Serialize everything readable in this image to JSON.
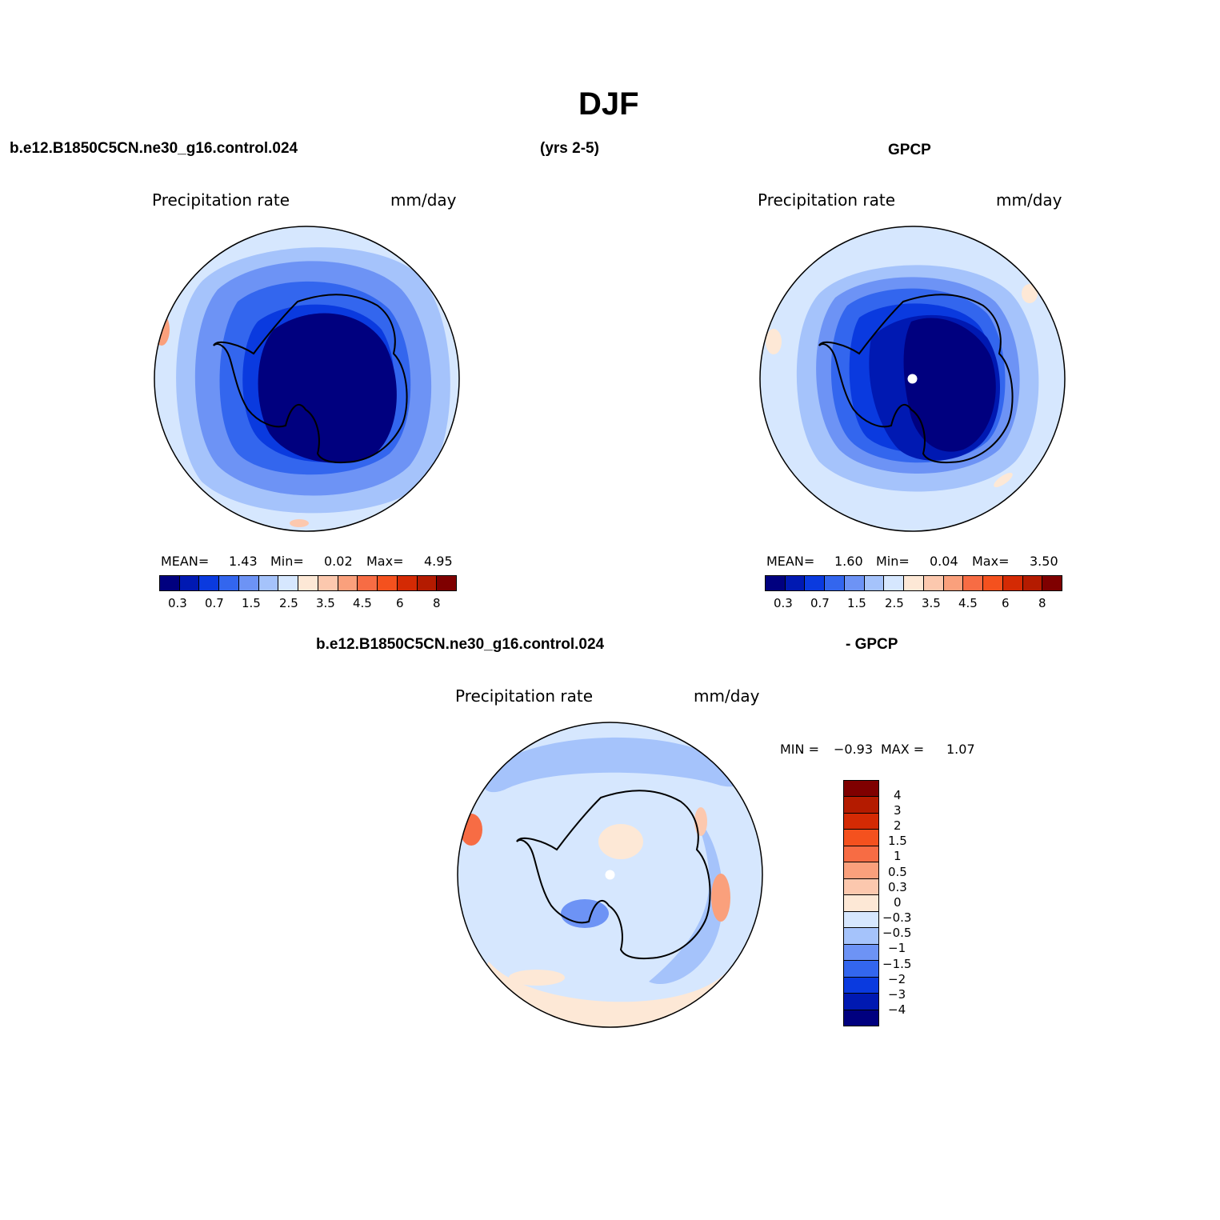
{
  "title": "DJF",
  "header": {
    "case_name": "b.e12.B1850C5CN.ne30_g16.control.024",
    "years": "(yrs 2-5)",
    "obs_name": "GPCP"
  },
  "panels": {
    "model": {
      "variable": "Precipitation rate",
      "units": "mm/day",
      "mean_label": "MEAN=",
      "mean": "1.43",
      "min_label": "Min=",
      "min": "0.02",
      "max_label": "Max=",
      "max": "4.95"
    },
    "obs": {
      "variable": "Precipitation rate",
      "units": "mm/day",
      "mean_label": "MEAN=",
      "mean": "1.60",
      "min_label": "Min=",
      "min": "0.04",
      "max_label": "Max=",
      "max": "3.50"
    },
    "diff": {
      "title_left": "b.e12.B1850C5CN.ne30_g16.control.024",
      "title_right": "- GPCP",
      "variable": "Precipitation rate",
      "units": "mm/day",
      "min_label": "MIN =",
      "min": "−0.93",
      "max_label": "MAX =",
      "max": "1.07"
    }
  },
  "colorbar_precip": {
    "colors": [
      "#00007f",
      "#0019b2",
      "#0a3adf",
      "#3366ee",
      "#6d93f5",
      "#a5c3fb",
      "#d6e7fe",
      "#fde8d6",
      "#fcc8ae",
      "#faa07c",
      "#f76c44",
      "#f4511e",
      "#d42a04",
      "#b41b00",
      "#7f0000"
    ],
    "tick_labels": [
      "0.3",
      "0.7",
      "1.5",
      "2.5",
      "3.5",
      "4.5",
      "6",
      "8"
    ]
  },
  "colorbar_diff": {
    "colors_top_to_bottom": [
      "#7f0000",
      "#b41b00",
      "#d42a04",
      "#f4511e",
      "#f76c44",
      "#faa07c",
      "#fcc8ae",
      "#fde8d6",
      "#d6e7fe",
      "#a5c3fb",
      "#6d93f5",
      "#3366ee",
      "#0a3adf",
      "#0019b2",
      "#00007f"
    ],
    "tick_labels": [
      "4",
      "3",
      "2",
      "1.5",
      "1",
      "0.5",
      "0.3",
      "0",
      "−0.3",
      "−0.5",
      "−1",
      "−1.5",
      "−2",
      "−3",
      "−4"
    ]
  },
  "colors": {
    "land_outline": "#000000",
    "pole_marker": "#ffffff"
  }
}
